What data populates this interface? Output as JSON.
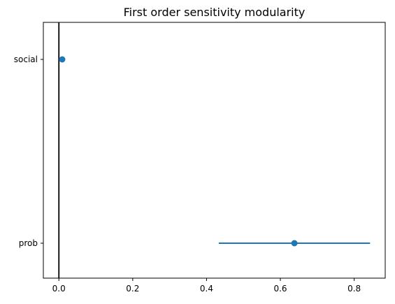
{
  "chart_data": {
    "type": "scatter",
    "title": "First order sensitivity modularity",
    "xlabel": "",
    "ylabel": "",
    "xlim": [
      -0.0421,
      0.884
    ],
    "x_ticks": [
      0.0,
      0.2,
      0.4,
      0.6,
      0.8
    ],
    "x_tick_labels": [
      "0.0",
      "0.2",
      "0.4",
      "0.6",
      "0.8"
    ],
    "categories": [
      "social",
      "prob"
    ],
    "points": [
      {
        "category": "social",
        "x": 0.009,
        "err_low": 0.009,
        "err_high": 0.009
      },
      {
        "category": "prob",
        "x": 0.638,
        "err_low": 0.433,
        "err_high": 0.843
      }
    ],
    "vertical_reference_line": 0.0,
    "grid": false,
    "colors": {
      "marker": "#1f77b4",
      "reference_line": "#000000",
      "axes": "#000000"
    }
  }
}
